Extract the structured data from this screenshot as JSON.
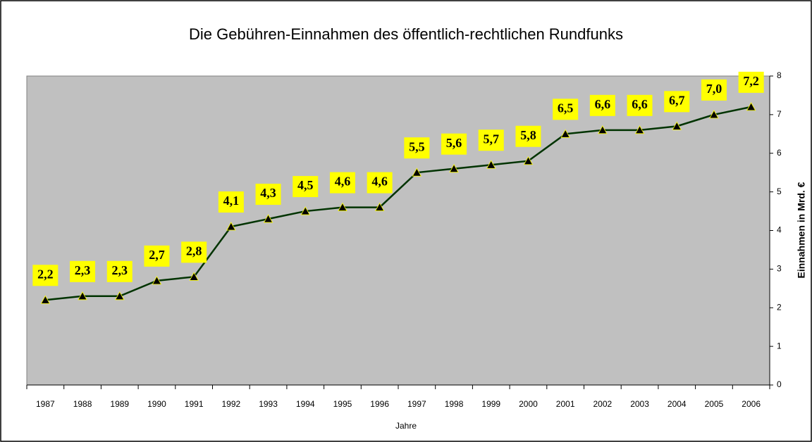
{
  "chart_data": {
    "type": "line",
    "title": "Die Gebühren-Einnahmen des öffentlich-rechtlichen Rundfunks",
    "x_label": "Jahre",
    "y_label": "Einnahmen in Mrd. €",
    "categories": [
      "1987",
      "1988",
      "1989",
      "1990",
      "1991",
      "1992",
      "1993",
      "1994",
      "1995",
      "1996",
      "1997",
      "1998",
      "1999",
      "2000",
      "2001",
      "2002",
      "2003",
      "2004",
      "2005",
      "2006"
    ],
    "values": [
      2.2,
      2.3,
      2.3,
      2.7,
      2.8,
      4.1,
      4.3,
      4.5,
      4.6,
      4.6,
      5.5,
      5.6,
      5.7,
      5.8,
      6.5,
      6.6,
      6.6,
      6.7,
      7.0,
      7.2
    ],
    "value_labels": [
      "2,2",
      "2,3",
      "2,3",
      "2,7",
      "2,8",
      "4,1",
      "4,3",
      "4,5",
      "4,6",
      "4,6",
      "5,5",
      "5,6",
      "5,7",
      "5,8",
      "6,5",
      "6,6",
      "6,6",
      "6,7",
      "7,0",
      "7,2"
    ],
    "color": "#003300",
    "marker_color": "#000000",
    "label_background": "#ffff00",
    "plot_background": "#c0c0c0",
    "ylim": [
      0,
      8
    ],
    "yticks": [
      0,
      1,
      2,
      3,
      4,
      5,
      6,
      7,
      8
    ],
    "y_axis_side": "right"
  }
}
